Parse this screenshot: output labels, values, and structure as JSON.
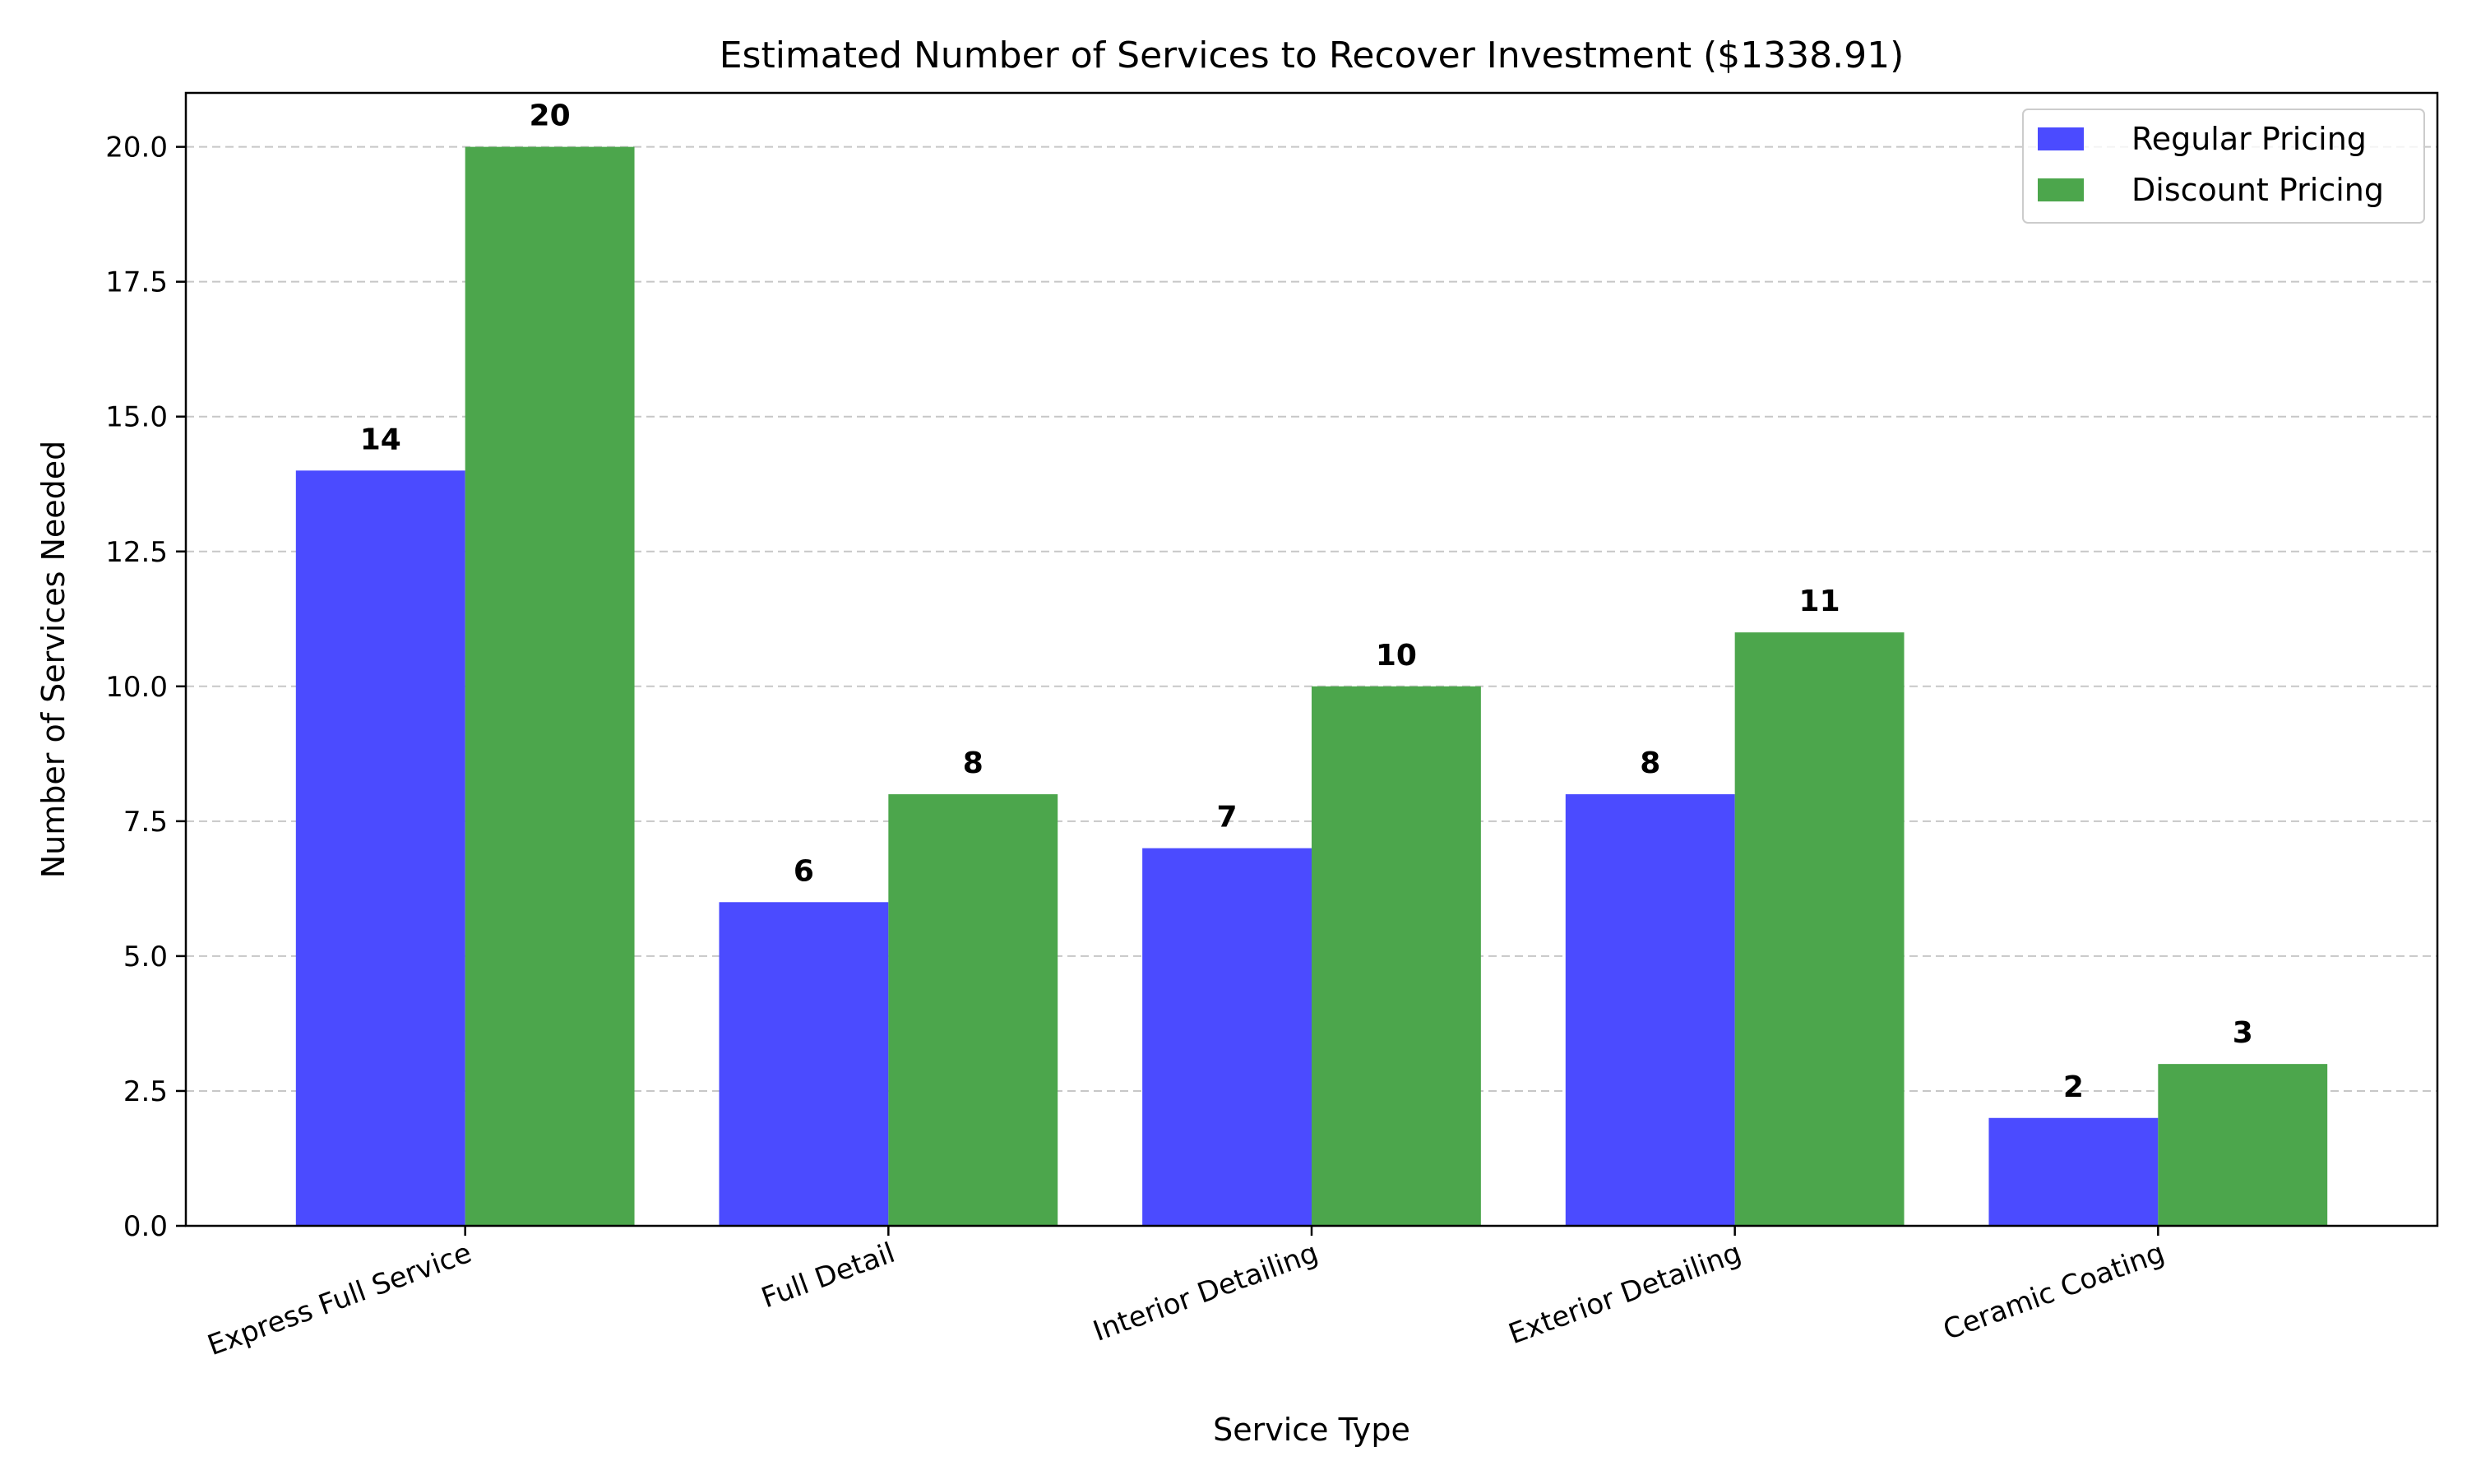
{
  "chart_data": {
    "type": "bar",
    "title": "Estimated Number of Services to Recover Investment ($1338.91)",
    "xlabel": "Service Type",
    "ylabel": "Number of Services Needed",
    "categories": [
      "Express Full Service",
      "Full Detail",
      "Interior Detailing",
      "Exterior Detailing",
      "Ceramic Coating"
    ],
    "series": [
      {
        "name": "Regular Pricing",
        "values": [
          14,
          6,
          7,
          8,
          2
        ],
        "color": "#4b4bff"
      },
      {
        "name": "Discount Pricing",
        "values": [
          20,
          8,
          10,
          11,
          3
        ],
        "color": "#4ca64c"
      }
    ],
    "ylim": [
      0,
      21
    ],
    "yticks": [
      "0.0",
      "2.5",
      "5.0",
      "7.5",
      "10.0",
      "12.5",
      "15.0",
      "17.5",
      "20.0"
    ],
    "grid": "y-dashed",
    "legend_position": "top-right",
    "data_labels": true
  }
}
